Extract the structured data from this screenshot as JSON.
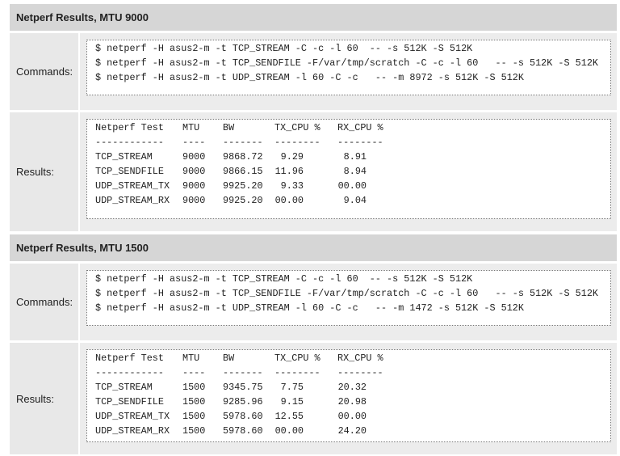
{
  "sections": [
    {
      "title": "Netperf Results, MTU 9000",
      "commands": {
        "label": "Commands:",
        "lines": [
          "$ netperf -H asus2-m -t TCP_STREAM -C -c -l 60  -- -s 512K -S 512K",
          "$ netperf -H asus2-m -t TCP_SENDFILE -F/var/tmp/scratch -C -c -l 60   -- -s 512K -S 512K",
          "$ netperf -H asus2-m -t UDP_STREAM -l 60 -C -c   -- -m 8972 -s 512K -S 512K"
        ]
      },
      "results": {
        "label": "Results:",
        "header": [
          "Netperf Test",
          "MTU",
          "BW",
          "TX_CPU %",
          "RX_CPU %"
        ],
        "separator": [
          "------------",
          "----",
          "-------",
          "--------",
          "--------"
        ],
        "rows": [
          [
            "TCP_STREAM",
            "9000",
            "9868.72",
            "9.29",
            "8.91"
          ],
          [
            "TCP_SENDFILE",
            "9000",
            "9866.15",
            "11.96",
            "8.94"
          ],
          [
            "UDP_STREAM_TX",
            "9000",
            "9925.20",
            "9.33",
            "00.00"
          ],
          [
            "UDP_STREAM_RX",
            "9000",
            "9925.20",
            "00.00",
            "9.04"
          ]
        ]
      }
    },
    {
      "title": "Netperf Results, MTU 1500",
      "commands": {
        "label": "Commands:",
        "lines": [
          "$ netperf -H asus2-m -t TCP_STREAM -C -c -l 60  -- -s 512K -S 512K",
          "$ netperf -H asus2-m -t TCP_SENDFILE -F/var/tmp/scratch -C -c -l 60   -- -s 512K -S 512K",
          "$ netperf -H asus2-m -t UDP_STREAM -l 60 -C -c   -- -m 1472 -s 512K -S 512K"
        ]
      },
      "results": {
        "label": "Results:",
        "header": [
          "Netperf Test",
          "MTU",
          "BW",
          "TX_CPU %",
          "RX_CPU %"
        ],
        "separator": [
          "------------",
          "----",
          "-------",
          "--------",
          "--------"
        ],
        "rows": [
          [
            "TCP_STREAM",
            "1500",
            "9345.75",
            "7.75",
            "20.32"
          ],
          [
            "TCP_SENDFILE",
            "1500",
            "9285.96",
            "9.15",
            "20.98"
          ],
          [
            "UDP_STREAM_TX",
            "1500",
            "5978.60",
            "12.55",
            "00.00"
          ],
          [
            "UDP_STREAM_RX",
            "1500",
            "5978.60",
            "00.00",
            "24.20"
          ]
        ]
      }
    }
  ]
}
